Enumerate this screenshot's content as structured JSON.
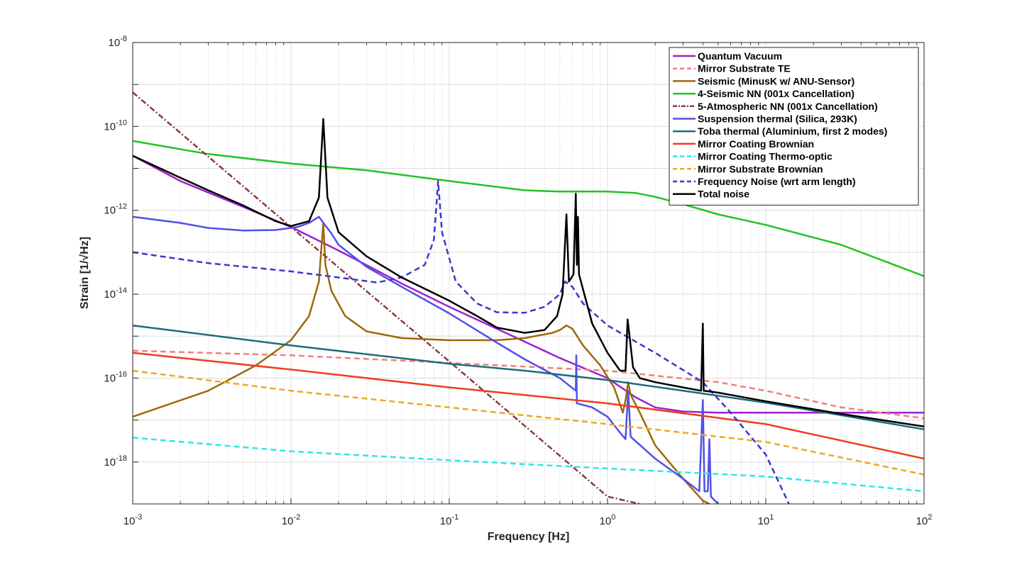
{
  "chart_data": {
    "type": "line",
    "xlabel": "Frequency [Hz]",
    "ylabel": "Strain [1/√Hz]",
    "x_scale": "log",
    "y_scale": "log",
    "xlim": [
      0.001,
      100
    ],
    "ylim": [
      1e-19,
      1e-08
    ],
    "x_ticks": [
      {
        "value": 0.001,
        "base": "10",
        "exp": "-3"
      },
      {
        "value": 0.01,
        "base": "10",
        "exp": "-2"
      },
      {
        "value": 0.1,
        "base": "10",
        "exp": "-1"
      },
      {
        "value": 1,
        "base": "10",
        "exp": "0"
      },
      {
        "value": 10,
        "base": "10",
        "exp": "1"
      },
      {
        "value": 100,
        "base": "10",
        "exp": "2"
      }
    ],
    "y_ticks": [
      {
        "value": 1e-18,
        "base": "10",
        "exp": "-18"
      },
      {
        "value": 1e-16,
        "base": "10",
        "exp": "-16"
      },
      {
        "value": 1e-14,
        "base": "10",
        "exp": "-14"
      },
      {
        "value": 1e-12,
        "base": "10",
        "exp": "-12"
      },
      {
        "value": 1e-10,
        "base": "10",
        "exp": "-10"
      },
      {
        "value": 1e-08,
        "base": "10",
        "exp": "-8"
      }
    ],
    "grid": true,
    "legend_position": "top-right",
    "series": [
      {
        "name": "Quantum Vacuum",
        "color": "#a020d0",
        "dash": "solid",
        "points": [
          [
            0.001,
            2e-11
          ],
          [
            0.002,
            5e-12
          ],
          [
            0.005,
            1.2e-12
          ],
          [
            0.01,
            4e-13
          ],
          [
            0.02,
            1.1e-13
          ],
          [
            0.05,
            1.8e-14
          ],
          [
            0.1,
            5e-15
          ],
          [
            0.2,
            1.5e-15
          ],
          [
            0.5,
            3e-16
          ],
          [
            1,
            1e-16
          ],
          [
            1.5,
            3.5e-17
          ],
          [
            2,
            2e-17
          ],
          [
            3,
            1.6e-17
          ],
          [
            5,
            1.5e-17
          ],
          [
            10,
            1.5e-17
          ],
          [
            100,
            1.5e-17
          ]
        ]
      },
      {
        "name": "Mirror Substrate TE",
        "color": "#f08080",
        "dash": "dashed",
        "points": [
          [
            0.001,
            4.5e-16
          ],
          [
            0.01,
            3.5e-16
          ],
          [
            0.1,
            2.3e-16
          ],
          [
            1,
            1.5e-16
          ],
          [
            5,
            8e-17
          ],
          [
            10,
            5e-17
          ],
          [
            30,
            2e-17
          ],
          [
            100,
            1.1e-17
          ]
        ]
      },
      {
        "name": "Seismic (MinusK w/ ANU-Sensor)",
        "color": "#9b6a0a",
        "dash": "solid",
        "points": [
          [
            0.001,
            1.2e-17
          ],
          [
            0.003,
            5e-17
          ],
          [
            0.006,
            2e-16
          ],
          [
            0.01,
            8e-16
          ],
          [
            0.013,
            3e-15
          ],
          [
            0.015,
            2e-14
          ],
          [
            0.016,
            5e-13
          ],
          [
            0.0165,
            5e-14
          ],
          [
            0.018,
            1.2e-14
          ],
          [
            0.022,
            3e-15
          ],
          [
            0.03,
            1.3e-15
          ],
          [
            0.05,
            9e-16
          ],
          [
            0.1,
            8e-16
          ],
          [
            0.2,
            8e-16
          ],
          [
            0.3,
            9e-16
          ],
          [
            0.45,
            1.2e-15
          ],
          [
            0.5,
            1.4e-15
          ],
          [
            0.55,
            1.8e-15
          ],
          [
            0.6,
            1.5e-15
          ],
          [
            0.7,
            6e-16
          ],
          [
            0.9,
            2e-16
          ],
          [
            1.1,
            6e-17
          ],
          [
            1.25,
            1.5e-17
          ],
          [
            1.3,
            3e-17
          ],
          [
            1.35,
            8e-17
          ],
          [
            1.4,
            4e-17
          ],
          [
            1.6,
            1.5e-17
          ],
          [
            2,
            2.5e-18
          ],
          [
            3,
            4e-19
          ],
          [
            4,
            1.2e-19
          ],
          [
            4.4,
            1e-19
          ]
        ]
      },
      {
        "name": "4-Seismic NN (001x Cancellation)",
        "color": "#22c322",
        "dash": "solid",
        "points": [
          [
            0.001,
            4.5e-11
          ],
          [
            0.003,
            2.2e-11
          ],
          [
            0.01,
            1.3e-11
          ],
          [
            0.03,
            9e-12
          ],
          [
            0.1,
            5e-12
          ],
          [
            0.3,
            3e-12
          ],
          [
            0.5,
            2.8e-12
          ],
          [
            1,
            2.8e-12
          ],
          [
            1.5,
            2.6e-12
          ],
          [
            2,
            2.1e-12
          ],
          [
            3,
            1.4e-12
          ],
          [
            5,
            8e-13
          ],
          [
            10,
            4.5e-13
          ],
          [
            30,
            1.5e-13
          ],
          [
            100,
            2.7e-14
          ]
        ]
      },
      {
        "name": "5-Atmospheric NN (001x Cancellation)",
        "color": "#8b3a3a",
        "dash": "dashdot",
        "points": [
          [
            0.001,
            6.5e-10
          ],
          [
            0.01,
            4e-13
          ],
          [
            0.1,
            2.5e-16
          ],
          [
            1,
            1.5e-19
          ],
          [
            1.6,
            1e-19
          ]
        ]
      },
      {
        "name": "Suspension thermal (Silica, 293K)",
        "color": "#5050e8",
        "dash": "solid",
        "points": [
          [
            0.001,
            7e-13
          ],
          [
            0.002,
            5e-13
          ],
          [
            0.003,
            3.8e-13
          ],
          [
            0.005,
            3.3e-13
          ],
          [
            0.008,
            3.4e-13
          ],
          [
            0.011,
            4e-13
          ],
          [
            0.013,
            5e-13
          ],
          [
            0.015,
            7e-13
          ],
          [
            0.018,
            2.8e-13
          ],
          [
            0.02,
            1.5e-13
          ],
          [
            0.03,
            4.5e-14
          ],
          [
            0.05,
            1.5e-14
          ],
          [
            0.1,
            3.5e-15
          ],
          [
            0.2,
            7e-16
          ],
          [
            0.3,
            2.8e-16
          ],
          [
            0.5,
            1e-16
          ],
          [
            0.63,
            5e-17
          ],
          [
            0.635,
            3.5e-16
          ],
          [
            0.64,
            2.5e-17
          ],
          [
            0.8,
            2e-17
          ],
          [
            1,
            1.2e-17
          ],
          [
            1.2,
            5e-18
          ],
          [
            1.3,
            3.5e-18
          ],
          [
            1.35,
            5e-17
          ],
          [
            1.4,
            4e-18
          ],
          [
            2,
            1.2e-18
          ],
          [
            3,
            4e-19
          ],
          [
            3.8,
            2e-19
          ],
          [
            4,
            3e-17
          ],
          [
            4.1,
            2e-19
          ],
          [
            4.3,
            2e-19
          ],
          [
            4.4,
            3.5e-18
          ],
          [
            4.5,
            1.5e-19
          ],
          [
            5,
            1e-19
          ]
        ]
      },
      {
        "name": "Toba thermal (Aluminium, first 2 modes)",
        "color": "#1f6b7a",
        "dash": "solid",
        "points": [
          [
            0.001,
            1.8e-15
          ],
          [
            0.01,
            6e-16
          ],
          [
            0.1,
            2.2e-16
          ],
          [
            0.3,
            1.5e-16
          ],
          [
            1,
            9e-17
          ],
          [
            3,
            5e-17
          ],
          [
            10,
            2.6e-17
          ],
          [
            30,
            1.3e-17
          ],
          [
            100,
            6e-18
          ]
        ]
      },
      {
        "name": "Mirror Coating Brownian",
        "color": "#f03c1e",
        "dash": "solid",
        "points": [
          [
            0.001,
            4e-16
          ],
          [
            0.01,
            1.6e-16
          ],
          [
            0.1,
            6e-17
          ],
          [
            1,
            2.5e-17
          ],
          [
            10,
            8e-18
          ],
          [
            100,
            1.2e-18
          ]
        ]
      },
      {
        "name": "Mirror Coating Thermo-optic",
        "color": "#2ee8e8",
        "dash": "dashed",
        "points": [
          [
            0.001,
            3.8e-18
          ],
          [
            0.01,
            1.8e-18
          ],
          [
            0.1,
            1.1e-18
          ],
          [
            1,
            7e-19
          ],
          [
            10,
            4.5e-19
          ],
          [
            100,
            2e-19
          ]
        ]
      },
      {
        "name": "Mirror Substrate Brownian",
        "color": "#f0a820",
        "dash": "dashed",
        "points": [
          [
            0.001,
            1.5e-16
          ],
          [
            0.01,
            5e-17
          ],
          [
            0.1,
            2e-17
          ],
          [
            1,
            8e-18
          ],
          [
            10,
            3e-18
          ],
          [
            100,
            5e-19
          ]
        ]
      },
      {
        "name": "Frequency Noise (wrt arm length)",
        "color": "#3a3ac8",
        "dash": "dashed",
        "points": [
          [
            0.001,
            1e-13
          ],
          [
            0.003,
            5.5e-14
          ],
          [
            0.01,
            3.5e-14
          ],
          [
            0.02,
            2.5e-14
          ],
          [
            0.035,
            1.9e-14
          ],
          [
            0.05,
            2.5e-14
          ],
          [
            0.07,
            5e-14
          ],
          [
            0.08,
            2e-13
          ],
          [
            0.085,
            5e-12
          ],
          [
            0.09,
            3e-13
          ],
          [
            0.11,
            2e-14
          ],
          [
            0.15,
            6e-15
          ],
          [
            0.2,
            3.7e-15
          ],
          [
            0.3,
            3.6e-15
          ],
          [
            0.4,
            5e-15
          ],
          [
            0.5,
            1e-14
          ],
          [
            0.54,
            2e-14
          ],
          [
            0.6,
            1.5e-14
          ],
          [
            0.7,
            6e-15
          ],
          [
            1,
            1.8e-15
          ],
          [
            2,
            4e-16
          ],
          [
            4,
            8e-17
          ],
          [
            6,
            1.5e-17
          ],
          [
            10,
            1.5e-18
          ],
          [
            14,
            1e-19
          ]
        ]
      },
      {
        "name": "Total noise",
        "color": "#000000",
        "dash": "solid",
        "points": [
          [
            0.001,
            2e-11
          ],
          [
            0.002,
            6e-12
          ],
          [
            0.003,
            3e-12
          ],
          [
            0.005,
            1.3e-12
          ],
          [
            0.008,
            5.5e-13
          ],
          [
            0.01,
            4.2e-13
          ],
          [
            0.013,
            5.5e-13
          ],
          [
            0.015,
            2e-12
          ],
          [
            0.016,
            1.5e-10
          ],
          [
            0.017,
            2e-12
          ],
          [
            0.02,
            3e-13
          ],
          [
            0.03,
            8e-14
          ],
          [
            0.05,
            2.5e-14
          ],
          [
            0.1,
            7e-15
          ],
          [
            0.15,
            3e-15
          ],
          [
            0.2,
            1.6e-15
          ],
          [
            0.3,
            1.2e-15
          ],
          [
            0.4,
            1.4e-15
          ],
          [
            0.48,
            3e-15
          ],
          [
            0.52,
            1e-14
          ],
          [
            0.55,
            8e-13
          ],
          [
            0.57,
            2e-14
          ],
          [
            0.61,
            3e-14
          ],
          [
            0.63,
            2.5e-12
          ],
          [
            0.64,
            5e-14
          ],
          [
            0.65,
            7e-13
          ],
          [
            0.66,
            3e-14
          ],
          [
            0.8,
            2e-15
          ],
          [
            1,
            4e-16
          ],
          [
            1.2,
            1.5e-16
          ],
          [
            1.3,
            1.5e-16
          ],
          [
            1.34,
            2.5e-15
          ],
          [
            1.37,
            1.2e-15
          ],
          [
            1.45,
            1.8e-16
          ],
          [
            1.6,
            1e-16
          ],
          [
            2,
            8e-17
          ],
          [
            3,
            6e-17
          ],
          [
            3.9,
            5e-17
          ],
          [
            4,
            2e-15
          ],
          [
            4.05,
            5e-17
          ],
          [
            5,
            4.5e-17
          ],
          [
            10,
            2.8e-17
          ],
          [
            30,
            1.4e-17
          ],
          [
            100,
            7e-18
          ]
        ]
      }
    ]
  }
}
